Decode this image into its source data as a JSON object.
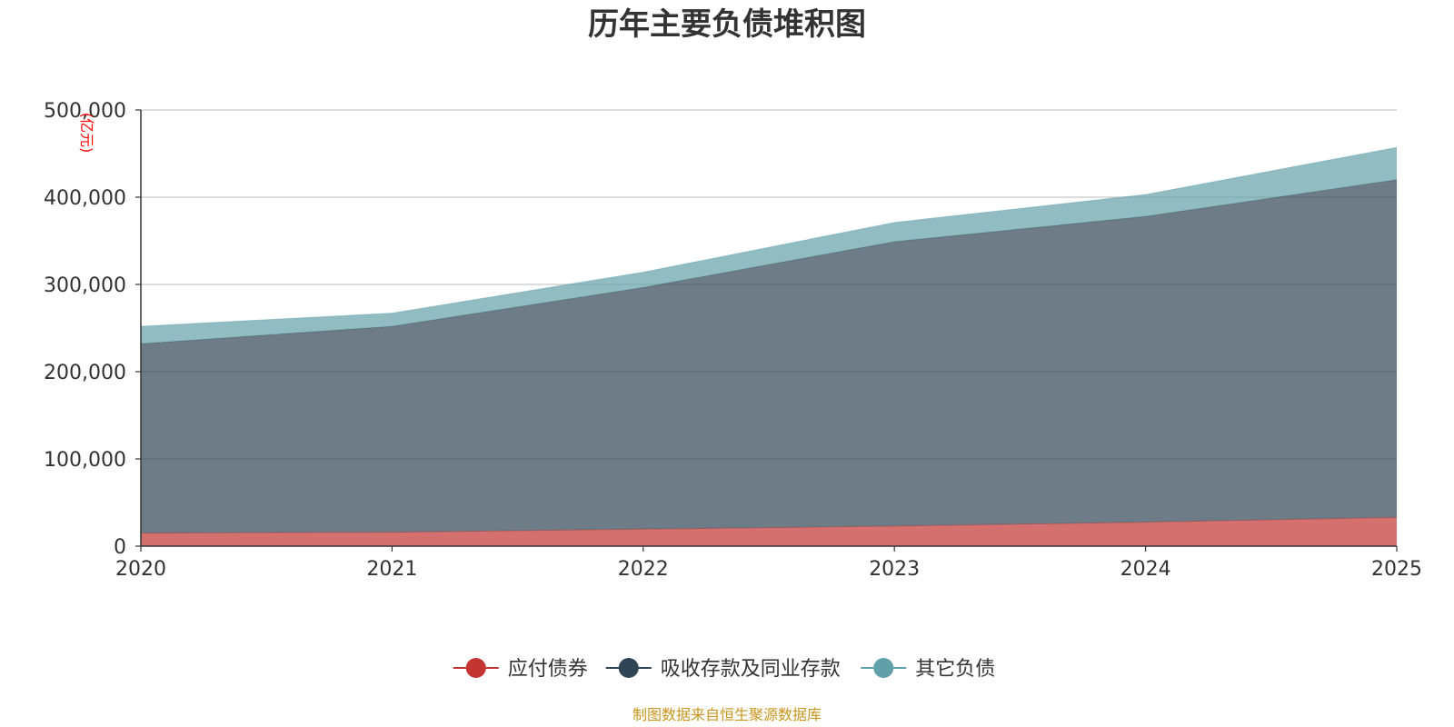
{
  "chart_data": {
    "type": "area",
    "stacked": true,
    "title": "历年主要负债堆积图",
    "unit_label": "(亿元)",
    "x": [
      "2020",
      "2021",
      "2022",
      "2023",
      "2024",
      "2025"
    ],
    "y_ticks": [
      "0",
      "100,000",
      "200,000",
      "300,000",
      "400,000",
      "500,000"
    ],
    "ylim": [
      0,
      500000
    ],
    "grid": true,
    "series": [
      {
        "name": "应付债券",
        "color": "#c23531",
        "values": [
          15000,
          16000,
          19500,
          23000,
          27500,
          33000
        ]
      },
      {
        "name": "吸收存款及同业存款",
        "color": "#2f4554",
        "values": [
          217000,
          236000,
          277000,
          326000,
          350500,
          387000
        ]
      },
      {
        "name": "其它负债",
        "color": "#61a0a8",
        "values": [
          20000,
          15000,
          17500,
          22000,
          25000,
          37000
        ]
      }
    ],
    "legend_position": "bottom-center",
    "source": "制图数据来自恒生聚源数据库"
  }
}
